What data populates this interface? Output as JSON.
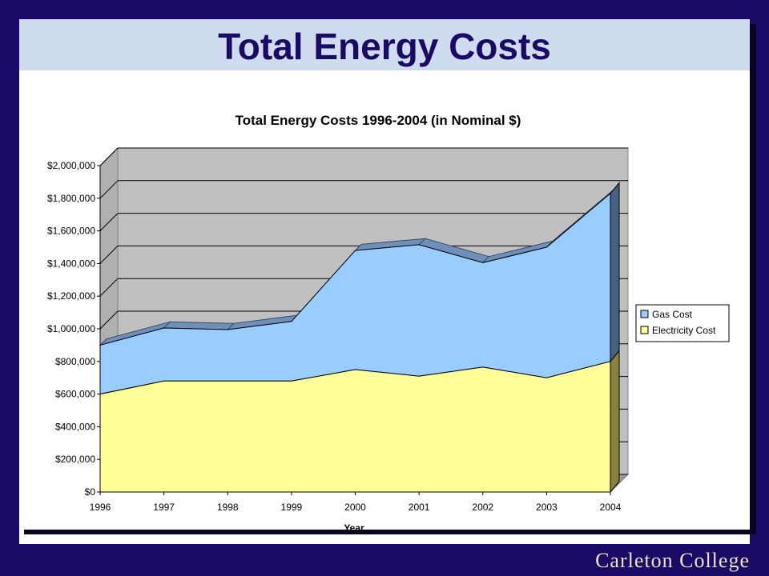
{
  "slide": {
    "title": "Total Energy Costs"
  },
  "footer": {
    "brand": "Carleton College"
  },
  "colors": {
    "background": "#1a0a66",
    "title_band": "#cfdcf0",
    "title_text": "#1a0a66",
    "gas": "#99ccff",
    "electricity": "#ffff99",
    "plot_wall": "#c0c0c0"
  },
  "chart_data": {
    "type": "area",
    "title": "Total Energy Costs 1996-2004 (in Nominal $)",
    "xlabel": "Year",
    "ylabel": "",
    "x": [
      "1996",
      "1997",
      "1998",
      "1999",
      "2000",
      "2001",
      "2002",
      "2003",
      "2004"
    ],
    "ylim": [
      0,
      2000000
    ],
    "yticks": [
      "$0",
      "$200,000",
      "$400,000",
      "$600,000",
      "$800,000",
      "$1,000,000",
      "$1,200,000",
      "$1,400,000",
      "$1,600,000",
      "$1,800,000",
      "$2,000,000"
    ],
    "stacked": true,
    "series": [
      {
        "name": "Electricity Cost",
        "values": [
          600000,
          680000,
          680000,
          680000,
          750000,
          710000,
          765000,
          700000,
          800000
        ]
      },
      {
        "name": "Gas Cost",
        "values": [
          300000,
          325000,
          315000,
          365000,
          730000,
          805000,
          640000,
          800000,
          1030000
        ]
      }
    ],
    "legend": "right",
    "grid": true
  }
}
